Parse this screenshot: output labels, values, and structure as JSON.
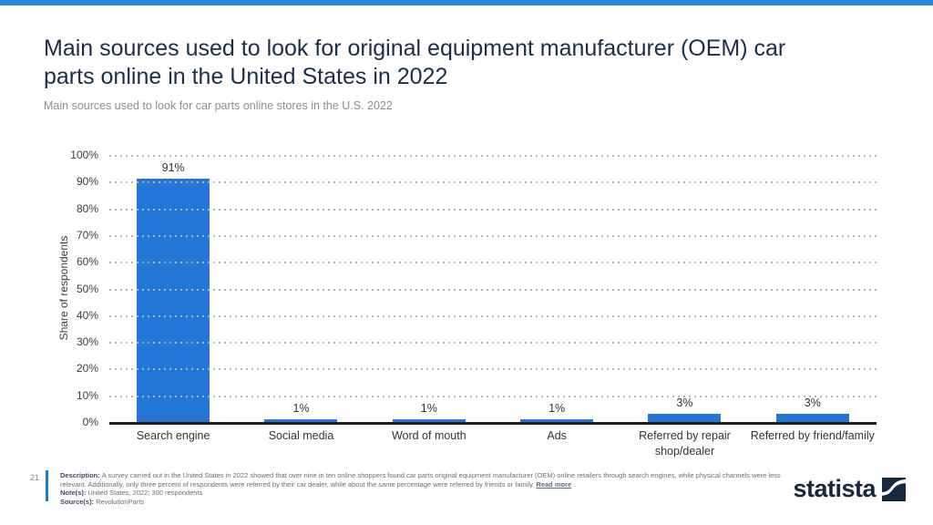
{
  "page": {
    "title": "Main sources used to look for original equipment manufacturer (OEM) car parts online in the United States in 2022",
    "title_lines": [
      "Main sources used to look for original equipment manufacturer (OEM) car",
      "parts online in the United States in 2022"
    ],
    "subtitle": "Main sources used to look for car parts online stores in the U.S. 2022",
    "page_number": "21",
    "accent_color": "#2d83d5"
  },
  "chart_data": {
    "type": "bar",
    "title": "Main sources used to look for original equipment manufacturer (OEM) car parts online in the United States in 2022",
    "subtitle": "Main sources used to look for car parts online stores in the U.S. 2022",
    "categories": [
      "Search engine",
      "Social media",
      "Word of mouth",
      "Ads",
      "Referred by repair shop/dealer",
      "Referred by friend/family"
    ],
    "category_lines": [
      [
        "Search engine"
      ],
      [
        "Social media"
      ],
      [
        "Word of mouth"
      ],
      [
        "Ads"
      ],
      [
        "Referred by repair",
        "shop/dealer"
      ],
      [
        "Referred by friend/family"
      ]
    ],
    "values": [
      91,
      1,
      1,
      1,
      3,
      3
    ],
    "value_labels": [
      "91%",
      "1%",
      "1%",
      "1%",
      "3%",
      "3%"
    ],
    "xlabel": "",
    "ylabel": "Share of respondents",
    "ylim": [
      0,
      100
    ],
    "ytick_step": 10,
    "yticks": [
      "0%",
      "10%",
      "20%",
      "30%",
      "40%",
      "50%",
      "60%",
      "70%",
      "80%",
      "90%",
      "100%"
    ],
    "grid": "horizontal-dotted",
    "legend": "none",
    "bar_color": "#2376d5"
  },
  "footer": {
    "description_label": "Description:",
    "description_text": "A survey carried out in the United States in 2022 showed that over nine in ten online shoppers found car parts original equipment manufacturer (OEM) online retailers through search engines, while physical channels were less relevant. Additionally, only three percent of respondents were referred by their car dealer, while about the same percentage were referred by friends or family.",
    "read_more_label": "Read more",
    "notes_label": "Note(s):",
    "notes_text": "United States; 2022; 300 respondents",
    "source_label": "Source(s):",
    "source_text": "RevolutionParts",
    "logo_text": "statista"
  }
}
